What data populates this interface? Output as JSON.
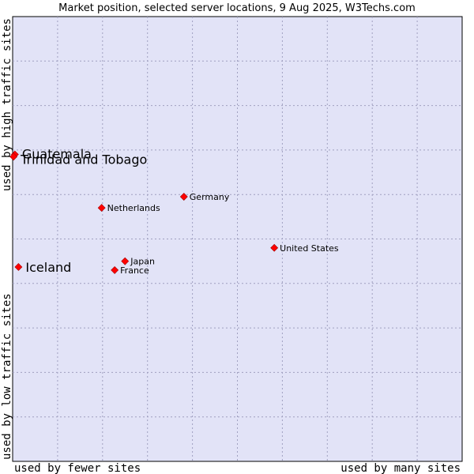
{
  "chart_data": {
    "type": "scatter",
    "title": "Market position, selected server locations, 9 Aug 2025, W3Techs.com",
    "xlabel_left": "used by fewer sites",
    "xlabel_right": "used by many sites",
    "ylabel_bottom": "used by low traffic sites",
    "ylabel_top": "used by high traffic sites",
    "xlim": [
      0,
      10
    ],
    "ylim": [
      0,
      10
    ],
    "grid": true,
    "points": [
      {
        "name": "United States",
        "x": 5.82,
        "y": 4.8,
        "size": "small",
        "label_pos": "right"
      },
      {
        "name": "Germany",
        "x": 3.81,
        "y": 5.95,
        "size": "small",
        "label_pos": "right"
      },
      {
        "name": "Netherlands",
        "x": 1.98,
        "y": 5.7,
        "size": "small",
        "label_pos": "right"
      },
      {
        "name": "Japan",
        "x": 2.5,
        "y": 4.5,
        "size": "small",
        "label_pos": "right"
      },
      {
        "name": "France",
        "x": 2.27,
        "y": 4.3,
        "size": "small",
        "label_pos": "right"
      },
      {
        "name": "Guatemala",
        "x": 0.05,
        "y": 6.9,
        "size": "large",
        "label_pos": "right-up"
      },
      {
        "name": "Trinidad and Tobago",
        "x": 0.02,
        "y": 6.85,
        "size": "large",
        "label_pos": "right-down"
      },
      {
        "name": "Iceland",
        "x": 0.13,
        "y": 4.37,
        "size": "large",
        "label_pos": "right"
      }
    ]
  }
}
